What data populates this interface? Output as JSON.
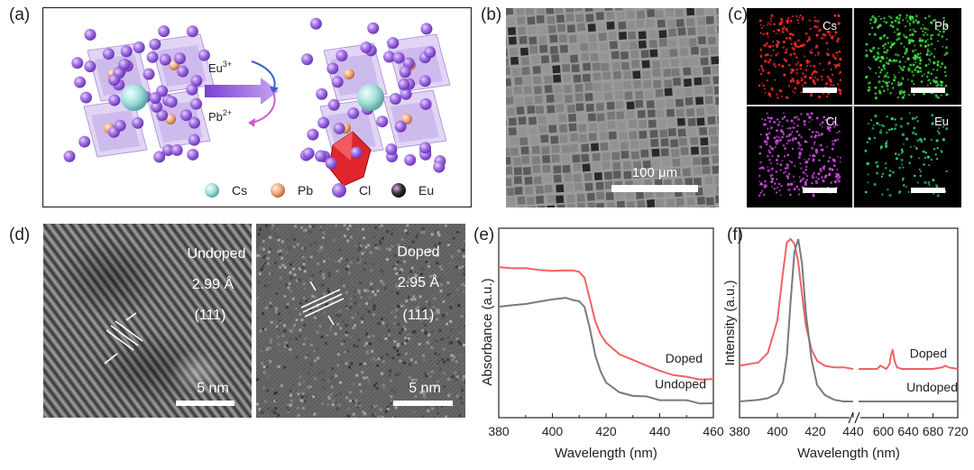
{
  "panels": {
    "a": {
      "label": "(a)",
      "arrow_top": "Eu",
      "arrow_top_sup": "3+",
      "arrow_bottom": "Pb",
      "arrow_bottom_sup": "2+",
      "legend": [
        {
          "name": "Cs",
          "color": "#9fd9d6"
        },
        {
          "name": "Pb",
          "color": "#e9a57c"
        },
        {
          "name": "Cl",
          "color": "#9a69d8"
        },
        {
          "name": "Eu",
          "color": "#2b1f2f"
        }
      ]
    },
    "b": {
      "label": "(b)",
      "scale_bar": "100 μm"
    },
    "c": {
      "label": "(c)",
      "maps": [
        {
          "element": "Cs",
          "color": "#ff2b2b"
        },
        {
          "element": "Pb",
          "color": "#3fe03f"
        },
        {
          "element": "Cl",
          "color": "#d24ee6"
        },
        {
          "element": "Eu",
          "color": "#2fd47a"
        }
      ]
    },
    "d": {
      "label": "(d)",
      "left": {
        "title": "Undoped",
        "spacing": "2.99 Å",
        "plane": "(111)",
        "scale_bar": "5 nm"
      },
      "right": {
        "title": "Doped",
        "spacing": "2.95 Å",
        "plane": "(111)",
        "scale_bar": "5 nm"
      }
    },
    "e": {
      "label": "(e)"
    },
    "f": {
      "label": "(f)"
    }
  },
  "chart_data": [
    {
      "type": "line",
      "panel": "e",
      "xlabel": "Wavelength (nm)",
      "ylabel": "Absorbance (a.u.)",
      "xlim": [
        380,
        460
      ],
      "xticks": [
        380,
        400,
        420,
        440,
        460
      ],
      "yticks_shown": false,
      "series": [
        {
          "name": "Doped",
          "color": "#f06262",
          "x": [
            380,
            385,
            390,
            395,
            400,
            405,
            408,
            410,
            412,
            414,
            416,
            418,
            420,
            425,
            430,
            435,
            440,
            445,
            450,
            455,
            460
          ],
          "y": [
            0.82,
            0.81,
            0.81,
            0.8,
            0.8,
            0.8,
            0.8,
            0.79,
            0.76,
            0.64,
            0.52,
            0.45,
            0.41,
            0.35,
            0.31,
            0.28,
            0.25,
            0.23,
            0.22,
            0.21,
            0.21
          ]
        },
        {
          "name": "Undoped",
          "color": "#7a7a7a",
          "x": [
            380,
            385,
            390,
            395,
            400,
            405,
            408,
            410,
            412,
            414,
            416,
            418,
            420,
            425,
            430,
            435,
            440,
            445,
            450,
            455,
            460
          ],
          "y": [
            0.6,
            0.61,
            0.62,
            0.63,
            0.64,
            0.65,
            0.64,
            0.63,
            0.6,
            0.48,
            0.34,
            0.25,
            0.19,
            0.14,
            0.12,
            0.11,
            0.1,
            0.09,
            0.09,
            0.08,
            0.08
          ]
        }
      ]
    },
    {
      "type": "line",
      "panel": "f",
      "xlabel": "Wavelength (nm)",
      "ylabel": "Intensity (a.u.)",
      "axis_break": true,
      "segments": [
        {
          "xlim": [
            380,
            440
          ],
          "xticks": [
            380,
            400,
            420,
            440
          ]
        },
        {
          "xlim": [
            560,
            720
          ],
          "xticks": [
            600,
            640,
            680,
            720
          ]
        }
      ],
      "series": [
        {
          "name": "Doped",
          "color": "#f06262",
          "segment1": {
            "x": [
              380,
              390,
              395,
              400,
              403,
              405,
              407,
              409,
              411,
              413,
              415,
              418,
              421,
              425,
              430,
              435,
              440
            ],
            "y": [
              0.22,
              0.24,
              0.3,
              0.5,
              0.8,
              0.98,
              1.0,
              0.97,
              0.86,
              0.66,
              0.47,
              0.32,
              0.25,
              0.22,
              0.21,
              0.21,
              0.2
            ]
          },
          "segment2": {
            "x": [
              560,
              580,
              590,
              595,
              600,
              605,
              610,
              612,
              615,
              618,
              622,
              630,
              650,
              680,
              695,
              700,
              705,
              720
            ],
            "y": [
              0.2,
              0.2,
              0.2,
              0.22,
              0.21,
              0.2,
              0.23,
              0.28,
              0.32,
              0.25,
              0.21,
              0.2,
              0.2,
              0.2,
              0.21,
              0.22,
              0.21,
              0.2
            ]
          }
        },
        {
          "name": "Undoped",
          "color": "#7a7a7a",
          "segment1": {
            "x": [
              380,
              390,
              395,
              400,
              403,
              405,
              407,
              409,
              411,
              413,
              415,
              418,
              421,
              425,
              430,
              435,
              440
            ],
            "y": [
              0.0,
              0.01,
              0.02,
              0.05,
              0.12,
              0.28,
              0.62,
              0.92,
              1.0,
              0.85,
              0.55,
              0.26,
              0.1,
              0.04,
              0.01,
              0.0,
              0.0
            ]
          },
          "segment2": {
            "x": [
              560,
              720
            ],
            "y": [
              0.0,
              0.0
            ]
          }
        }
      ]
    }
  ]
}
